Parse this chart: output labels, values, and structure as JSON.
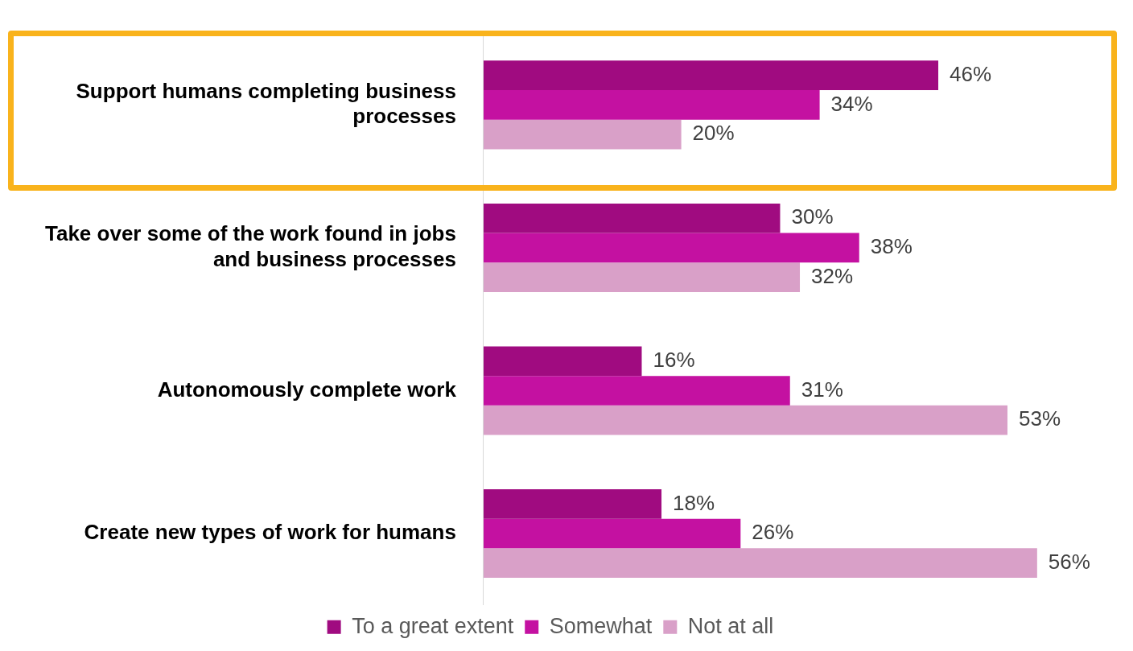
{
  "chart_data": {
    "type": "bar",
    "orientation": "horizontal",
    "categories": [
      "Support humans completing business processes",
      "Take over some of the work found in jobs and business processes",
      "Autonomously complete work",
      "Create new types of work for humans"
    ],
    "series": [
      {
        "name": "To a great extent",
        "color": "#a00b80",
        "values": [
          46,
          30,
          16,
          18
        ],
        "value_labels": [
          "46%",
          "30%",
          "16%",
          "18%"
        ]
      },
      {
        "name": "Somewhat",
        "color": "#c411a1",
        "values": [
          34,
          38,
          31,
          26
        ],
        "value_labels": [
          "34%",
          "38%",
          "31%",
          "26%"
        ]
      },
      {
        "name": "Not at all",
        "color": "#d9a0c8",
        "values": [
          20,
          32,
          53,
          56
        ],
        "value_labels": [
          "20%",
          "32%",
          "53%",
          "56%"
        ]
      }
    ],
    "legend": "bottom",
    "tick_labels": "y"
  }
}
